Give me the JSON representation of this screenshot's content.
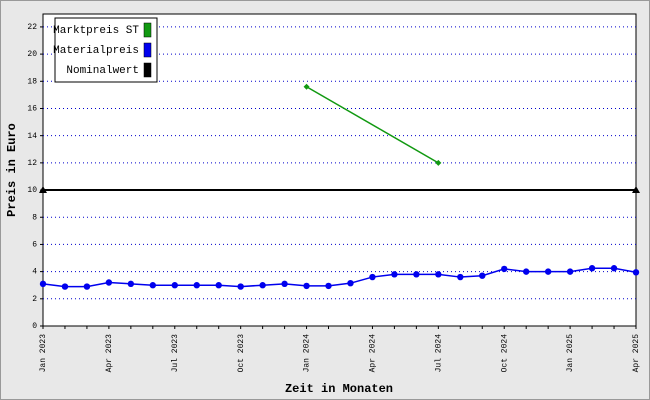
{
  "chart_data": {
    "type": "line",
    "x_label": "Zeit in Monaten",
    "y_label": "Preis in Euro",
    "categories": [
      "Jan 2023",
      null,
      null,
      "Apr 2023",
      null,
      null,
      "Jul 2023",
      null,
      null,
      "Oct 2023",
      null,
      null,
      "Jan 2024",
      null,
      null,
      "Apr 2024",
      null,
      null,
      "Jul 2024",
      null,
      null,
      "Oct 2024",
      null,
      null,
      "Jan 2025",
      null,
      null,
      "Apr 2025"
    ],
    "series": [
      {
        "name": "Marktpreis ST",
        "color": "#119911",
        "x": [
          "Jan 2024",
          "Jul 2024"
        ],
        "values": [
          17.6,
          12.0
        ],
        "marker": "diamond"
      },
      {
        "name": "Materialpreis",
        "color": "#0000ee",
        "values": [
          3.1,
          2.9,
          2.9,
          3.2,
          3.1,
          3.0,
          3.0,
          3.0,
          3.0,
          2.9,
          3.0,
          3.1,
          2.95,
          2.95,
          3.15,
          3.6,
          3.8,
          3.8,
          3.8,
          3.6,
          3.7,
          4.2,
          4.0,
          4.0,
          4.0,
          4.25,
          4.25,
          3.95
        ],
        "marker": "circle"
      },
      {
        "name": "Nominalwert",
        "color": "#000000",
        "x": [
          "Jan 2023",
          "Apr 2025"
        ],
        "values": [
          10,
          10
        ],
        "marker": "triangle"
      }
    ],
    "ylim": [
      0,
      22.95
    ],
    "yticks": [
      0,
      2,
      4,
      6,
      8,
      10,
      12,
      14,
      16,
      18,
      20,
      22
    ],
    "grid": true,
    "legend": "top-left"
  }
}
